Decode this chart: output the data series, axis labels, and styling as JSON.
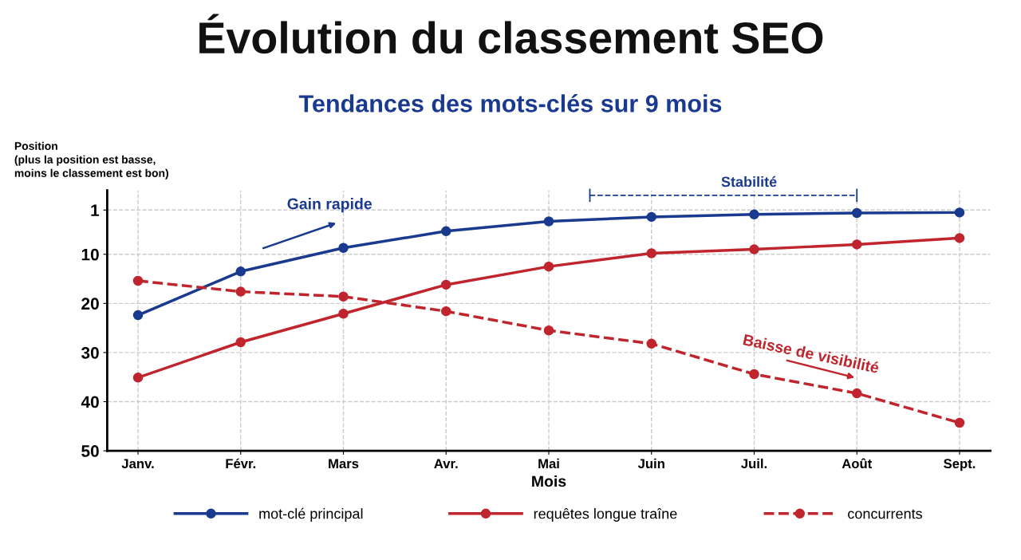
{
  "chart_data": {
    "type": "line",
    "title": "Évolution du classement SEO",
    "subtitle": "Tendances des mots-clés sur 9 mois",
    "xlabel": "Mois",
    "ylabel": "Position\n(plus la position est basse,\nmoins le classement est bon)",
    "categories": [
      "Janv.",
      "Févr.",
      "Mars",
      "Avr.",
      "Mai",
      "Juin",
      "Juil.",
      "Août",
      "Sept."
    ],
    "series": [
      {
        "name": "mot-clé principal",
        "color": "#1a3a8f",
        "line_style": "solid",
        "values": [
          22.4,
          13.5,
          8.7,
          5.3,
          3.3,
          2.4,
          1.9,
          1.6,
          1.5
        ]
      },
      {
        "name": "requêtes longue traîne",
        "color": "#c0252d",
        "line_style": "solid",
        "values": [
          35.1,
          27.9,
          22.1,
          16.2,
          12.5,
          9.8,
          9.0,
          8.0,
          6.7
        ]
      },
      {
        "name": "concurrents",
        "color": "#c0252d",
        "line_style": "dashed",
        "values": [
          15.4,
          17.6,
          18.6,
          21.6,
          25.5,
          28.2,
          34.4,
          38.3,
          44.3
        ]
      }
    ],
    "ylim": [
      50,
      -3
    ],
    "yticks": [
      1,
      10,
      20,
      30,
      40,
      50
    ],
    "annotations": [
      "Gain rapide",
      "Stabilité",
      "Baisse de visibilité"
    ],
    "grid": true,
    "legend": "bottom",
    "marker": "circle"
  }
}
